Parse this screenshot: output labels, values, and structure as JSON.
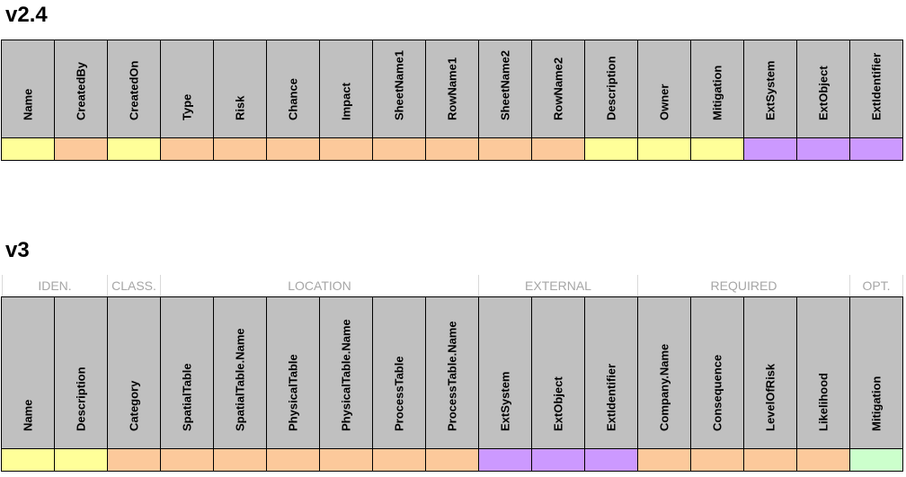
{
  "colors": {
    "yellow": "#ffff99",
    "orange": "#fcc99b",
    "purple": "#cc99ff",
    "green": "#ccffcc",
    "header": "#c0c0c0"
  },
  "v24": {
    "title": "v2.4",
    "columns": [
      {
        "name": "Name",
        "color": "yellow"
      },
      {
        "name": "CreatedBy",
        "color": "orange"
      },
      {
        "name": "CreatedOn",
        "color": "yellow"
      },
      {
        "name": "Type",
        "color": "orange"
      },
      {
        "name": "Risk",
        "color": "orange"
      },
      {
        "name": "Chance",
        "color": "orange"
      },
      {
        "name": "Impact",
        "color": "orange"
      },
      {
        "name": "SheetName1",
        "color": "orange"
      },
      {
        "name": "RowName1",
        "color": "orange"
      },
      {
        "name": "SheetName2",
        "color": "orange"
      },
      {
        "name": "RowName2",
        "color": "orange"
      },
      {
        "name": "Description",
        "color": "yellow"
      },
      {
        "name": "Owner",
        "color": "yellow"
      },
      {
        "name": "Mitigation",
        "color": "yellow"
      },
      {
        "name": "ExtSystem",
        "color": "purple"
      },
      {
        "name": "ExtObject",
        "color": "purple"
      },
      {
        "name": "ExtIdentifier",
        "color": "purple"
      }
    ]
  },
  "v3": {
    "title": "v3",
    "groups": [
      {
        "label": "IDEN.",
        "span": 2
      },
      {
        "label": "CLASS.",
        "span": 1
      },
      {
        "label": "LOCATION",
        "span": 6
      },
      {
        "label": "EXTERNAL",
        "span": 3
      },
      {
        "label": "REQUIRED",
        "span": 4
      },
      {
        "label": "OPT.",
        "span": 1
      }
    ],
    "columns": [
      {
        "name": "Name",
        "color": "yellow"
      },
      {
        "name": "Description",
        "color": "yellow"
      },
      {
        "name": "Category",
        "color": "orange"
      },
      {
        "name": "SpatialTable",
        "color": "orange"
      },
      {
        "name": "SpatialTable.Name",
        "color": "orange"
      },
      {
        "name": "PhysicalTable",
        "color": "orange"
      },
      {
        "name": "PhysicalTable.Name",
        "color": "orange"
      },
      {
        "name": "ProcessTable",
        "color": "orange"
      },
      {
        "name": "ProcessTable.Name",
        "color": "orange"
      },
      {
        "name": "ExtSystem",
        "color": "purple"
      },
      {
        "name": "ExtObject",
        "color": "purple"
      },
      {
        "name": "ExtIdentifier",
        "color": "purple"
      },
      {
        "name": "Company.Name",
        "color": "orange"
      },
      {
        "name": "Consequence",
        "color": "orange"
      },
      {
        "name": "LevelOfRisk",
        "color": "orange"
      },
      {
        "name": "Likelihood",
        "color": "orange"
      },
      {
        "name": "Mitigation",
        "color": "green"
      }
    ]
  }
}
